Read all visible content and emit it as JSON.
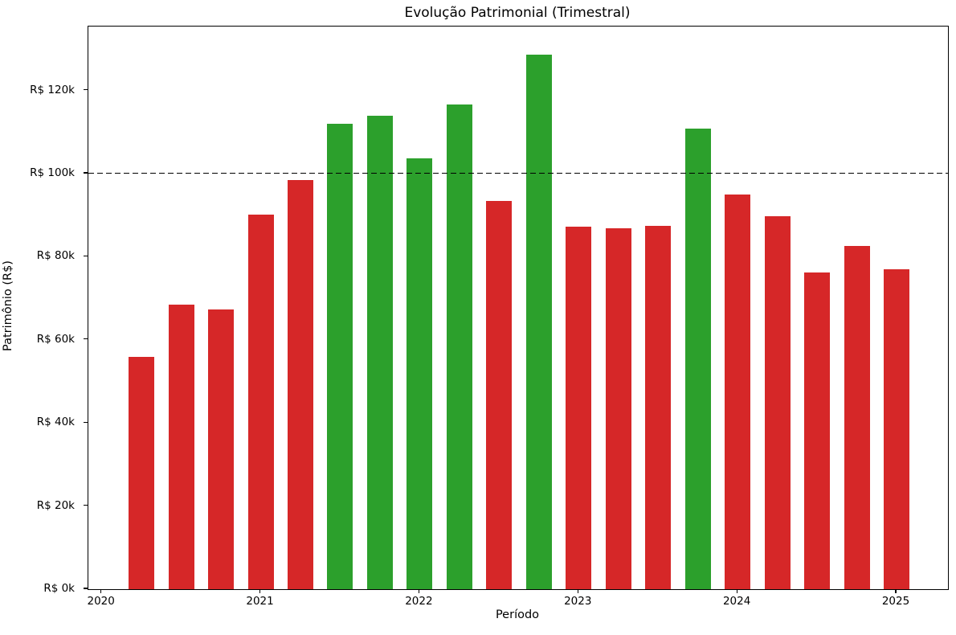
{
  "chart_data": {
    "type": "bar",
    "title": "Evolução Patrimonial (Trimestral)",
    "xlabel": "Período",
    "ylabel": "Patrimônio (R$)",
    "categories": [
      "2020Q1",
      "2020Q2",
      "2020Q3",
      "2020Q4",
      "2021Q1",
      "2021Q2",
      "2021Q3",
      "2021Q4",
      "2022Q1",
      "2022Q2",
      "2022Q3",
      "2022Q4",
      "2023Q1",
      "2023Q2",
      "2023Q3",
      "2023Q4",
      "2024Q1",
      "2024Q2",
      "2024Q3",
      "2024Q4"
    ],
    "values": [
      56000,
      68500,
      67300,
      90200,
      98500,
      112000,
      113900,
      103700,
      116600,
      93400,
      128700,
      87300,
      86900,
      87400,
      110800,
      95000,
      89700,
      76200,
      82600,
      76900
    ],
    "units": "R$",
    "threshold": {
      "value": 100000,
      "line_style": "dashed",
      "line_color": "#000000"
    },
    "colors": {
      "above_threshold": "#2ca02c",
      "below_threshold": "#d62728"
    },
    "y_ticks": [
      {
        "value": 0,
        "label": "R$ 0k"
      },
      {
        "value": 20000,
        "label": "R$ 20k"
      },
      {
        "value": 40000,
        "label": "R$ 40k"
      },
      {
        "value": 60000,
        "label": "R$ 60k"
      },
      {
        "value": 80000,
        "label": "R$ 80k"
      },
      {
        "value": 100000,
        "label": "R$ 100k"
      },
      {
        "value": 120000,
        "label": "R$ 120k"
      }
    ],
    "x_ticks": [
      {
        "value": 2020,
        "label": "2020"
      },
      {
        "value": 2021,
        "label": "2021"
      },
      {
        "value": 2022,
        "label": "2022"
      },
      {
        "value": 2023,
        "label": "2023"
      },
      {
        "value": 2024,
        "label": "2024"
      },
      {
        "value": 2025,
        "label": "2025"
      }
    ],
    "ylim": [
      0,
      135400
    ],
    "grid": false,
    "legend": null
  }
}
